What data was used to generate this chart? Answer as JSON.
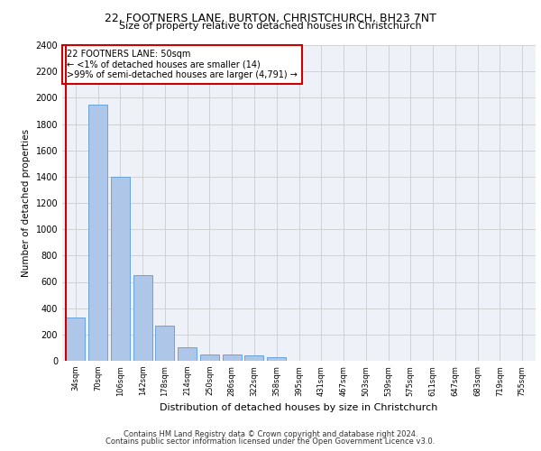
{
  "title1": "22, FOOTNERS LANE, BURTON, CHRISTCHURCH, BH23 7NT",
  "title2": "Size of property relative to detached houses in Christchurch",
  "xlabel": "Distribution of detached houses by size in Christchurch",
  "ylabel": "Number of detached properties",
  "bar_labels": [
    "34sqm",
    "70sqm",
    "106sqm",
    "142sqm",
    "178sqm",
    "214sqm",
    "250sqm",
    "286sqm",
    "322sqm",
    "358sqm",
    "395sqm",
    "431sqm",
    "467sqm",
    "503sqm",
    "539sqm",
    "575sqm",
    "611sqm",
    "647sqm",
    "683sqm",
    "719sqm",
    "755sqm"
  ],
  "bar_values": [
    330,
    1950,
    1400,
    650,
    270,
    105,
    50,
    45,
    40,
    25,
    0,
    0,
    0,
    0,
    0,
    0,
    0,
    0,
    0,
    0,
    0
  ],
  "bar_color": "#aec6e8",
  "bar_edge_color": "#5a9bd5",
  "highlight_color": "#cc0000",
  "annotation_box_text": "22 FOOTNERS LANE: 50sqm\n← <1% of detached houses are smaller (14)\n>99% of semi-detached houses are larger (4,791) →",
  "annotation_box_color": "#cc0000",
  "ylim": [
    0,
    2400
  ],
  "yticks": [
    0,
    200,
    400,
    600,
    800,
    1000,
    1200,
    1400,
    1600,
    1800,
    2000,
    2200,
    2400
  ],
  "grid_color": "#cccccc",
  "bg_color": "#eef2f8",
  "footer1": "Contains HM Land Registry data © Crown copyright and database right 2024.",
  "footer2": "Contains public sector information licensed under the Open Government Licence v3.0."
}
